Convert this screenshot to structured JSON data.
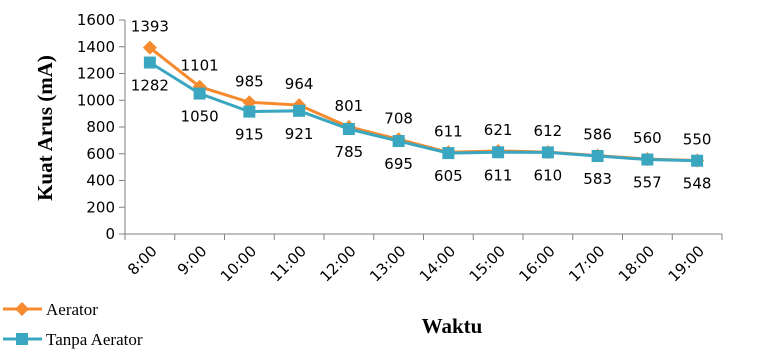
{
  "chart_data": {
    "type": "line",
    "categories": [
      "8:00",
      "9:00",
      "10:00",
      "11:00",
      "12:00",
      "13:00",
      "14:00",
      "15:00",
      "16:00",
      "17:00",
      "18:00",
      "19:00"
    ],
    "series": [
      {
        "name": "Aerator",
        "values": [
          1393,
          1101,
          985,
          964,
          801,
          708,
          611,
          621,
          612,
          586,
          560,
          550
        ],
        "color": "#F58A2E",
        "marker": "diamond"
      },
      {
        "name": "Tanpa Aerator",
        "values": [
          1282,
          1050,
          915,
          921,
          785,
          695,
          605,
          611,
          610,
          583,
          557,
          548
        ],
        "color": "#3BA6BF",
        "marker": "square"
      }
    ],
    "xlabel": "Waktu",
    "ylabel": "Kuat Arus (mA)",
    "ylim": [
      0,
      1600
    ],
    "yticks": [
      0,
      200,
      400,
      600,
      800,
      1000,
      1200,
      1400,
      1600
    ],
    "grid": false,
    "legend": "bottom-left"
  }
}
